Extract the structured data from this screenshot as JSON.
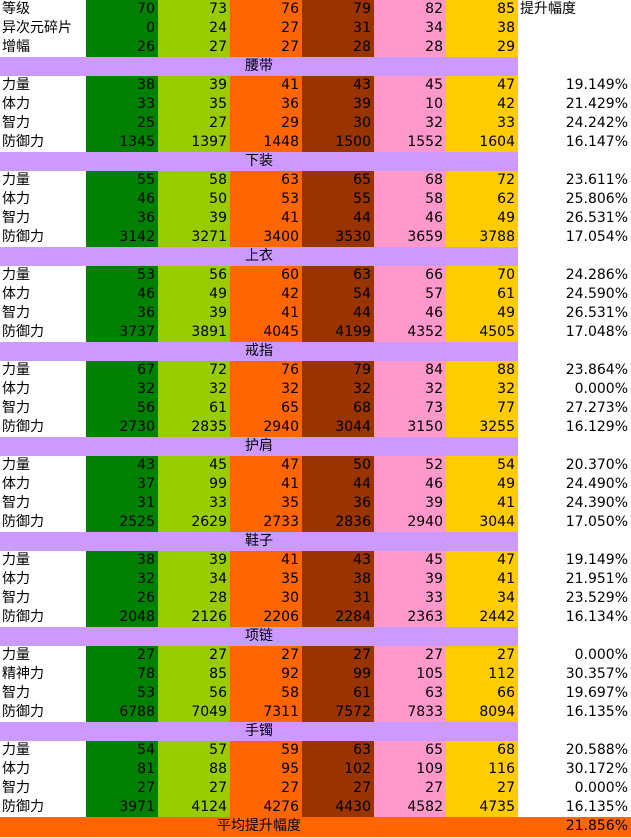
{
  "top_rows": [
    {
      "label": "等级",
      "values": [
        70,
        73,
        76,
        79,
        82,
        85
      ],
      "increase": "提升幅度"
    },
    {
      "label": "异次元碎片",
      "values": [
        0,
        24,
        27,
        31,
        34,
        38
      ]
    },
    {
      "label": "增幅",
      "values": [
        26,
        27,
        27,
        28,
        28,
        29
      ]
    }
  ],
  "sections": [
    {
      "title": "腰带",
      "rows": [
        {
          "label": "力量",
          "values": [
            38,
            39,
            41,
            43,
            45,
            47
          ],
          "increase": "19.149%"
        },
        {
          "label": "体力",
          "values": [
            33,
            35,
            36,
            39,
            10,
            42
          ],
          "increase": "21.429%"
        },
        {
          "label": "智力",
          "values": [
            25,
            27,
            29,
            30,
            32,
            33
          ],
          "increase": "24.242%"
        },
        {
          "label": "防御力",
          "values": [
            1345,
            1397,
            1448,
            1500,
            1552,
            1604
          ],
          "increase": "16.147%"
        }
      ]
    },
    {
      "title": "下装",
      "rows": [
        {
          "label": "力量",
          "values": [
            55,
            58,
            63,
            65,
            68,
            72
          ],
          "increase": "23.611%"
        },
        {
          "label": "体力",
          "values": [
            46,
            50,
            53,
            55,
            58,
            62
          ],
          "increase": "25.806%"
        },
        {
          "label": "智力",
          "values": [
            36,
            39,
            41,
            44,
            46,
            49
          ],
          "increase": "26.531%"
        },
        {
          "label": "防御力",
          "values": [
            3142,
            3271,
            3400,
            3530,
            3659,
            3788
          ],
          "increase": "17.054%"
        }
      ]
    },
    {
      "title": "上衣",
      "rows": [
        {
          "label": "力量",
          "values": [
            53,
            56,
            60,
            63,
            66,
            70
          ],
          "increase": "24.286%"
        },
        {
          "label": "体力",
          "values": [
            46,
            49,
            42,
            54,
            57,
            61
          ],
          "increase": "24.590%"
        },
        {
          "label": "智力",
          "values": [
            36,
            39,
            41,
            44,
            46,
            49
          ],
          "increase": "26.531%"
        },
        {
          "label": "防御力",
          "values": [
            3737,
            3891,
            4045,
            4199,
            4352,
            4505
          ],
          "increase": "17.048%"
        }
      ]
    },
    {
      "title": "戒指",
      "rows": [
        {
          "label": "力量",
          "values": [
            67,
            72,
            76,
            79,
            84,
            88
          ],
          "increase": "23.864%"
        },
        {
          "label": "体力",
          "values": [
            32,
            32,
            32,
            32,
            32,
            32
          ],
          "increase": "0.000%"
        },
        {
          "label": "智力",
          "values": [
            56,
            61,
            65,
            68,
            73,
            77
          ],
          "increase": "27.273%"
        },
        {
          "label": "防御力",
          "values": [
            2730,
            2835,
            2940,
            3044,
            3150,
            3255
          ],
          "increase": "16.129%"
        }
      ]
    },
    {
      "title": "护肩",
      "rows": [
        {
          "label": "力量",
          "values": [
            43,
            45,
            47,
            50,
            52,
            54
          ],
          "increase": "20.370%"
        },
        {
          "label": "体力",
          "values": [
            37,
            99,
            41,
            44,
            46,
            49
          ],
          "increase": "24.490%"
        },
        {
          "label": "智力",
          "values": [
            31,
            33,
            35,
            36,
            39,
            41
          ],
          "increase": "24.390%"
        },
        {
          "label": "防御力",
          "values": [
            2525,
            2629,
            2733,
            2836,
            2940,
            3044
          ],
          "increase": "17.050%"
        }
      ]
    },
    {
      "title": "鞋子",
      "rows": [
        {
          "label": "力量",
          "values": [
            38,
            39,
            41,
            43,
            45,
            47
          ],
          "increase": "19.149%"
        },
        {
          "label": "体力",
          "values": [
            32,
            34,
            35,
            38,
            39,
            41
          ],
          "increase": "21.951%"
        },
        {
          "label": "智力",
          "values": [
            26,
            28,
            30,
            31,
            33,
            34
          ],
          "increase": "23.529%"
        },
        {
          "label": "防御力",
          "values": [
            2048,
            2126,
            2206,
            2284,
            2363,
            2442
          ],
          "increase": "16.134%"
        }
      ]
    },
    {
      "title": "项链",
      "rows": [
        {
          "label": "力量",
          "values": [
            27,
            27,
            27,
            27,
            27,
            27
          ],
          "increase": "0.000%"
        },
        {
          "label": "精神力",
          "values": [
            78,
            85,
            92,
            99,
            105,
            112
          ],
          "increase": "30.357%"
        },
        {
          "label": "智力",
          "values": [
            53,
            56,
            58,
            61,
            63,
            66
          ],
          "increase": "19.697%"
        },
        {
          "label": "防御力",
          "values": [
            6788,
            7049,
            7311,
            7572,
            7833,
            8094
          ],
          "increase": "16.135%"
        }
      ]
    },
    {
      "title": "手镯",
      "rows": [
        {
          "label": "力量",
          "values": [
            54,
            57,
            59,
            63,
            65,
            68
          ],
          "increase": "20.588%"
        },
        {
          "label": "体力",
          "values": [
            81,
            88,
            95,
            102,
            109,
            116
          ],
          "increase": "30.172%"
        },
        {
          "label": "智力",
          "values": [
            27,
            27,
            27,
            27,
            27,
            27
          ],
          "increase": "0.000%"
        },
        {
          "label": "防御力",
          "values": [
            3971,
            4124,
            4276,
            4430,
            4582,
            4735
          ],
          "increase": "16.135%"
        }
      ]
    }
  ],
  "footer": {
    "label": "平均提升幅度",
    "value": "21.856%"
  }
}
